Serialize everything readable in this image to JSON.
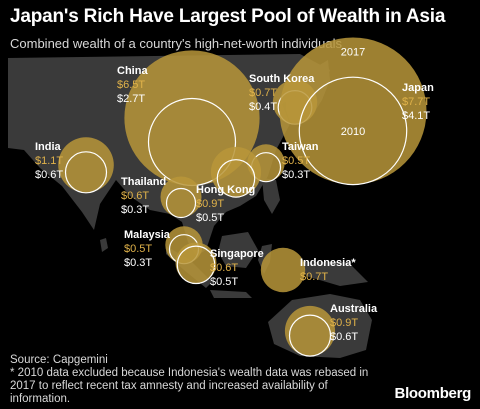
{
  "title": "Japan's Rich Have Largest Pool of Wealth in Asia",
  "subtitle": "Combined wealth of a country's high-net-worth individuals",
  "footer": {
    "source": "Source: Capgemini",
    "note_line1": "* 2010 data excluded because Indonesia's wealth data was rebased in",
    "note_line2": "2017 to reflect recent tax amnesty and increased availability of",
    "note_line3": "information."
  },
  "brand": "Bloomberg",
  "colors": {
    "background": "#000000",
    "land": "#3a3a3a",
    "bubble_2017": "#b9973a",
    "value_2017": "#e0b24a",
    "value_2010": "#ffffff",
    "outline_2010": "#ffffff"
  },
  "chart_data": {
    "type": "bubble-map",
    "unit": "T",
    "legend_labels": {
      "y2017": "2017",
      "y2010": "2010"
    },
    "series": [
      {
        "name": "2017"
      },
      {
        "name": "2010"
      }
    ],
    "points": [
      {
        "country": "China",
        "v2017": 6.5,
        "v2010": 2.7,
        "label2017": "$6.5T",
        "label2010": "$2.7T"
      },
      {
        "country": "South Korea",
        "v2017": 0.7,
        "v2010": 0.4,
        "label2017": "$0.7T",
        "label2010": "$0.4T"
      },
      {
        "country": "Japan",
        "v2017": 7.7,
        "v2010": 4.1,
        "label2017": "$7.7T",
        "label2010": "$4.1T"
      },
      {
        "country": "India",
        "v2017": 1.1,
        "v2010": 0.6,
        "label2017": "$1.1T",
        "label2010": "$0.6T"
      },
      {
        "country": "Taiwan",
        "v2017": 0.5,
        "v2010": 0.3,
        "label2017": "$0.5T",
        "label2010": "$0.3T"
      },
      {
        "country": "Thailand",
        "v2017": 0.6,
        "v2010": 0.3,
        "label2017": "$0.6T",
        "label2010": "$0.3T"
      },
      {
        "country": "Hong Kong",
        "v2017": 0.9,
        "v2010": 0.5,
        "label2017": "$0.9T",
        "label2010": "$0.5T"
      },
      {
        "country": "Malaysia",
        "v2017": 0.5,
        "v2010": 0.3,
        "label2017": "$0.5T",
        "label2010": "$0.3T"
      },
      {
        "country": "Singapore",
        "v2017": 0.6,
        "v2010": 0.5,
        "label2017": "$0.6T",
        "label2010": "$0.5T"
      },
      {
        "country": "Indonesia*",
        "v2017": 0.7,
        "v2010": null,
        "label2017": "$0.7T",
        "label2010": null
      },
      {
        "country": "Australia",
        "v2017": 0.9,
        "v2010": 0.6,
        "label2017": "$0.9T",
        "label2010": "$0.6T"
      }
    ]
  }
}
